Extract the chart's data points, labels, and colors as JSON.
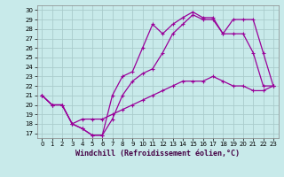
{
  "xlabel": "Windchill (Refroidissement éolien,°C)",
  "bg_color": "#c8eaea",
  "line_color": "#990099",
  "grid_color": "#aacccc",
  "x_ticks": [
    0,
    1,
    2,
    3,
    4,
    5,
    6,
    7,
    8,
    9,
    10,
    11,
    12,
    13,
    14,
    15,
    16,
    17,
    18,
    19,
    20,
    21,
    22,
    23
  ],
  "y_ticks": [
    17,
    18,
    19,
    20,
    21,
    22,
    23,
    24,
    25,
    26,
    27,
    28,
    29,
    30
  ],
  "ylim": [
    16.5,
    30.5
  ],
  "xlim": [
    -0.5,
    23.5
  ],
  "series1_x": [
    0,
    1,
    2,
    3,
    4,
    5,
    6,
    7,
    8,
    9,
    10,
    11,
    12,
    13,
    14,
    15,
    16,
    17,
    18,
    19,
    20,
    21,
    22,
    23
  ],
  "series1_y": [
    21.0,
    20.0,
    20.0,
    18.0,
    17.5,
    16.8,
    16.8,
    21.0,
    23.0,
    23.5,
    26.0,
    28.5,
    27.5,
    28.5,
    29.2,
    29.8,
    29.2,
    29.2,
    27.5,
    29.0,
    29.0,
    29.0,
    25.5,
    22.0
  ],
  "series2_x": [
    0,
    1,
    2,
    3,
    4,
    5,
    6,
    7,
    8,
    9,
    10,
    11,
    12,
    13,
    14,
    15,
    16,
    17,
    18,
    19,
    20,
    21,
    22,
    23
  ],
  "series2_y": [
    21.0,
    20.0,
    20.0,
    18.0,
    17.5,
    16.8,
    16.8,
    18.5,
    21.0,
    22.5,
    23.3,
    23.8,
    25.5,
    27.5,
    28.5,
    29.5,
    29.0,
    29.0,
    27.5,
    27.5,
    27.5,
    25.5,
    22.0,
    22.0
  ],
  "series3_x": [
    0,
    1,
    2,
    3,
    4,
    5,
    6,
    7,
    8,
    9,
    10,
    11,
    12,
    13,
    14,
    15,
    16,
    17,
    18,
    19,
    20,
    21,
    22,
    23
  ],
  "series3_y": [
    21.0,
    20.0,
    20.0,
    18.0,
    18.5,
    18.5,
    18.5,
    19.0,
    19.5,
    20.0,
    20.5,
    21.0,
    21.5,
    22.0,
    22.5,
    22.5,
    22.5,
    23.0,
    22.5,
    22.0,
    22.0,
    21.5,
    21.5,
    22.0
  ],
  "tick_fontsize": 5,
  "xlabel_fontsize": 6,
  "xlabel_color": "#440044"
}
